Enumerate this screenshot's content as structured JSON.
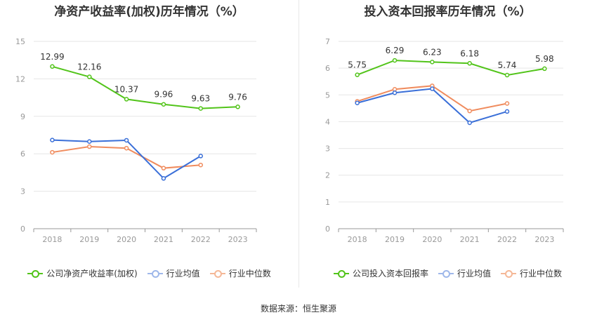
{
  "chart_data": [
    {
      "type": "line",
      "title": "净资产收益率(加权)历年情况（%）",
      "categories": [
        "2018",
        "2019",
        "2020",
        "2021",
        "2022",
        "2023"
      ],
      "ylim": [
        0,
        15
      ],
      "yticks": [
        0,
        3,
        6,
        9,
        12,
        15
      ],
      "grid": true,
      "legend_position": "bottom",
      "series": [
        {
          "name": "公司净资产收益率(加权)",
          "color": "#52c41a",
          "values": [
            12.99,
            12.16,
            10.37,
            9.96,
            9.63,
            9.76
          ],
          "labels": true
        },
        {
          "name": "行业均值",
          "color": "#3a6fd8",
          "values": [
            7.1,
            6.98,
            7.08,
            4.03,
            5.82,
            null
          ],
          "labels": false
        },
        {
          "name": "行业中位数",
          "color": "#f08c5e",
          "values": [
            6.12,
            6.57,
            6.45,
            4.85,
            5.1,
            null
          ],
          "labels": false
        }
      ]
    },
    {
      "type": "line",
      "title": "投入资本回报率历年情况（%）",
      "categories": [
        "2018",
        "2019",
        "2020",
        "2021",
        "2022",
        "2023"
      ],
      "ylim": [
        0,
        7
      ],
      "yticks": [
        0,
        1,
        2,
        3,
        4,
        5,
        6,
        7
      ],
      "grid": true,
      "legend_position": "bottom",
      "series": [
        {
          "name": "公司投入资本回报率",
          "color": "#52c41a",
          "values": [
            5.75,
            6.29,
            6.23,
            6.18,
            5.74,
            5.98
          ],
          "labels": true
        },
        {
          "name": "行业均值",
          "color": "#3a6fd8",
          "values": [
            4.7,
            5.08,
            5.23,
            3.96,
            4.38,
            null
          ],
          "labels": false
        },
        {
          "name": "行业中位数",
          "color": "#f08c5e",
          "values": [
            4.76,
            5.21,
            5.34,
            4.4,
            4.68,
            null
          ],
          "labels": false
        }
      ]
    }
  ],
  "source": "数据来源：恒生聚源",
  "colors": {
    "grid": "#e6e6e6",
    "axis": "#999999",
    "tick": "#999999",
    "label": "#333333",
    "legend_inactive": "#9fb8ea"
  }
}
